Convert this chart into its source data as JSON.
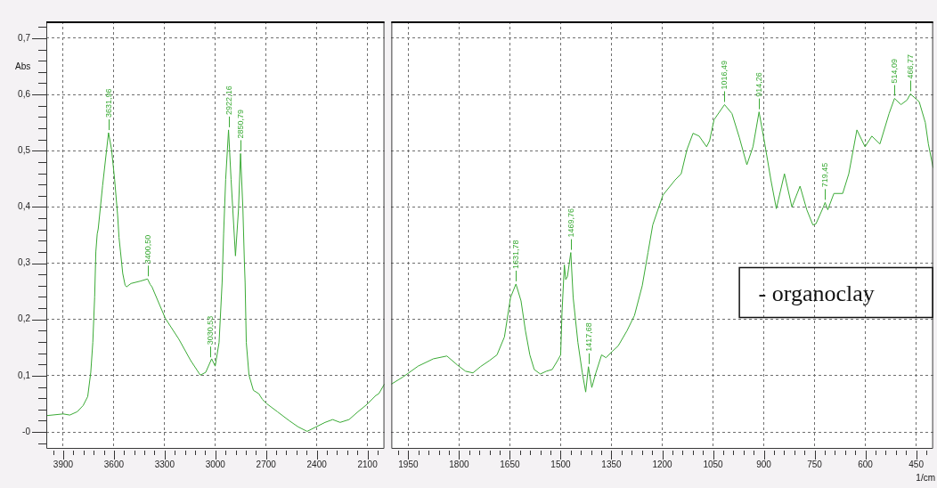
{
  "chart_data": [
    {
      "type": "line",
      "ylabel": "Abs",
      "color": "#3aaa35",
      "x": [
        4000,
        3900,
        3861,
        3817,
        3782,
        3755,
        3737,
        3725,
        3714,
        3707,
        3699,
        3693,
        3667,
        3632,
        3614,
        3596,
        3578,
        3570,
        3561,
        3548,
        3534,
        3525,
        3499,
        3446,
        3401,
        3385,
        3375,
        3296,
        3216,
        3146,
        3089,
        3057,
        3022,
        3001,
        2978,
        2960,
        2951,
        2939,
        2922,
        2907,
        2881,
        2863,
        2851,
        2837,
        2828,
        2824,
        2817,
        2801,
        2775,
        2743,
        2722,
        2695,
        2633,
        2563,
        2510,
        2457,
        2404,
        2351,
        2306,
        2262,
        2209,
        2156,
        2103,
        2050,
        2033,
        2000
      ],
      "values": [
        0.029,
        0.032,
        0.03,
        0.036,
        0.047,
        0.063,
        0.106,
        0.159,
        0.24,
        0.32,
        0.352,
        0.361,
        0.438,
        0.532,
        0.502,
        0.449,
        0.385,
        0.346,
        0.32,
        0.282,
        0.261,
        0.258,
        0.264,
        0.268,
        0.272,
        0.262,
        0.258,
        0.202,
        0.165,
        0.127,
        0.101,
        0.106,
        0.13,
        0.117,
        0.159,
        0.266,
        0.353,
        0.449,
        0.537,
        0.449,
        0.313,
        0.396,
        0.495,
        0.396,
        0.3,
        0.266,
        0.159,
        0.101,
        0.074,
        0.068,
        0.058,
        0.05,
        0.036,
        0.02,
        0.009,
        0.001,
        0.009,
        0.017,
        0.022,
        0.017,
        0.022,
        0.036,
        0.049,
        0.065,
        0.068,
        0.085
      ],
      "xlim": [
        4000,
        2000
      ],
      "xticks": [
        {
          "value": 3960,
          "label": null
        },
        3900,
        {
          "value": 3840,
          "label": null
        },
        {
          "value": 3780,
          "label": null
        },
        {
          "value": 3720,
          "label": null
        },
        {
          "value": 3660,
          "label": null
        },
        3600,
        {
          "value": 3540,
          "label": null
        },
        {
          "value": 3480,
          "label": null
        },
        {
          "value": 3420,
          "label": null
        },
        {
          "value": 3360,
          "label": null
        },
        3300,
        {
          "value": 3240,
          "label": null
        },
        {
          "value": 3180,
          "label": null
        },
        {
          "value": 3120,
          "label": null
        },
        {
          "value": 3060,
          "label": null
        },
        3000,
        {
          "value": 2940,
          "label": null
        },
        {
          "value": 2880,
          "label": null
        },
        {
          "value": 2820,
          "label": null
        },
        {
          "value": 2760,
          "label": null
        },
        2700,
        {
          "value": 2640,
          "label": null
        },
        {
          "value": 2580,
          "label": null
        },
        {
          "value": 2520,
          "label": null
        },
        {
          "value": 2460,
          "label": null
        },
        2400,
        {
          "value": 2340,
          "label": null
        },
        {
          "value": 2280,
          "label": null
        },
        {
          "value": 2220,
          "label": null
        },
        {
          "value": 2160,
          "label": null
        },
        2100,
        {
          "value": 2040,
          "label": null
        }
      ],
      "ylim": [
        -0.03,
        0.73
      ],
      "yticks": [
        {
          "value": -0.02,
          "label": null
        },
        {
          "value": 0,
          "label": "-0"
        },
        {
          "value": 0.02,
          "label": null
        },
        {
          "value": 0.04,
          "label": null
        },
        {
          "value": 0.06,
          "label": null
        },
        {
          "value": 0.08,
          "label": null
        },
        {
          "value": 0.1,
          "label": "0,1"
        },
        {
          "value": 0.12,
          "label": null
        },
        {
          "value": 0.14,
          "label": null
        },
        {
          "value": 0.16,
          "label": null
        },
        {
          "value": 0.18,
          "label": null
        },
        {
          "value": 0.2,
          "label": "0,2"
        },
        {
          "value": 0.22,
          "label": null
        },
        {
          "value": 0.24,
          "label": null
        },
        {
          "value": 0.26,
          "label": null
        },
        {
          "value": 0.28,
          "label": null
        },
        {
          "value": 0.3,
          "label": "0,3"
        },
        {
          "value": 0.32,
          "label": null
        },
        {
          "value": 0.34,
          "label": null
        },
        {
          "value": 0.36,
          "label": null
        },
        {
          "value": 0.38,
          "label": null
        },
        {
          "value": 0.4,
          "label": "0,4"
        },
        {
          "value": 0.42,
          "label": null
        },
        {
          "value": 0.44,
          "label": null
        },
        {
          "value": 0.46,
          "label": null
        },
        {
          "value": 0.48,
          "label": null
        },
        {
          "value": 0.5,
          "label": "0,5"
        },
        {
          "value": 0.52,
          "label": null
        },
        {
          "value": 0.54,
          "label": null
        },
        {
          "value": 0.56,
          "label": null
        },
        {
          "value": 0.58,
          "label": null
        },
        {
          "value": 0.6,
          "label": "0,6"
        },
        {
          "value": 0.62,
          "label": null
        },
        {
          "value": 0.64,
          "label": null
        },
        {
          "value": 0.66,
          "label": null
        },
        {
          "value": 0.68,
          "label": null
        },
        {
          "value": 0.7,
          "label": "0,7"
        },
        {
          "value": 0.72,
          "label": null
        }
      ],
      "grid": true,
      "annotations": [
        {
          "text": "3631,96",
          "x": 3631.96,
          "y": 0.532
        },
        {
          "text": "3400,50",
          "x": 3400.5,
          "y": 0.272
        },
        {
          "text": "3030,53",
          "x": 3030.53,
          "y": 0.128
        },
        {
          "text": "2922,16",
          "x": 2922.16,
          "y": 0.537
        },
        {
          "text": "2850,79",
          "x": 2850.79,
          "y": 0.495
        }
      ]
    },
    {
      "type": "line",
      "xlabel": "1/cm",
      "color": "#3aaa35",
      "tick_labels": "x",
      "x": [
        2000,
        1965,
        1921,
        1876,
        1836,
        1805,
        1781,
        1759,
        1737,
        1710,
        1688,
        1666,
        1648,
        1632,
        1617,
        1604,
        1591,
        1578,
        1560,
        1542,
        1525,
        1509,
        1500,
        1496,
        1489,
        1485,
        1480,
        1470,
        1463,
        1449,
        1436,
        1426,
        1418,
        1408,
        1396,
        1379,
        1366,
        1348,
        1330,
        1304,
        1282,
        1259,
        1242,
        1228,
        1198,
        1162,
        1144,
        1127,
        1109,
        1091,
        1069,
        1060,
        1047,
        1016,
        994,
        972,
        950,
        932,
        914,
        897,
        879,
        863,
        839,
        817,
        793,
        773,
        755,
        746,
        724,
        719,
        711,
        693,
        667,
        649,
        625,
        601,
        581,
        557,
        530,
        514,
        495,
        477,
        467,
        441,
        423,
        414,
        400
      ],
      "values": [
        0.085,
        0.098,
        0.117,
        0.13,
        0.135,
        0.119,
        0.108,
        0.105,
        0.116,
        0.127,
        0.137,
        0.169,
        0.239,
        0.263,
        0.233,
        0.18,
        0.137,
        0.111,
        0.103,
        0.108,
        0.111,
        0.127,
        0.137,
        0.212,
        0.297,
        0.271,
        0.276,
        0.319,
        0.239,
        0.159,
        0.105,
        0.071,
        0.116,
        0.079,
        0.105,
        0.137,
        0.132,
        0.143,
        0.153,
        0.18,
        0.207,
        0.26,
        0.319,
        0.368,
        0.421,
        0.448,
        0.459,
        0.502,
        0.531,
        0.526,
        0.507,
        0.518,
        0.555,
        0.582,
        0.566,
        0.523,
        0.475,
        0.507,
        0.569,
        0.512,
        0.448,
        0.397,
        0.459,
        0.4,
        0.437,
        0.395,
        0.368,
        0.37,
        0.4,
        0.408,
        0.395,
        0.424,
        0.424,
        0.459,
        0.537,
        0.507,
        0.526,
        0.512,
        0.566,
        0.593,
        0.582,
        0.59,
        0.601,
        0.587,
        0.55,
        0.512,
        0.47
      ],
      "xlim": [
        2000,
        400
      ],
      "xticks": [
        {
          "value": 1980,
          "label": null
        },
        1950,
        {
          "value": 1920,
          "label": null
        },
        {
          "value": 1890,
          "label": null
        },
        {
          "value": 1860,
          "label": null
        },
        {
          "value": 1830,
          "label": null
        },
        1800,
        {
          "value": 1770,
          "label": null
        },
        {
          "value": 1740,
          "label": null
        },
        {
          "value": 1710,
          "label": null
        },
        {
          "value": 1680,
          "label": null
        },
        1650,
        {
          "value": 1620,
          "label": null
        },
        {
          "value": 1590,
          "label": null
        },
        {
          "value": 1560,
          "label": null
        },
        {
          "value": 1530,
          "label": null
        },
        1500,
        {
          "value": 1470,
          "label": null
        },
        {
          "value": 1440,
          "label": null
        },
        {
          "value": 1410,
          "label": null
        },
        {
          "value": 1380,
          "label": null
        },
        1350,
        {
          "value": 1320,
          "label": null
        },
        {
          "value": 1290,
          "label": null
        },
        {
          "value": 1260,
          "label": null
        },
        {
          "value": 1230,
          "label": null
        },
        1200,
        {
          "value": 1170,
          "label": null
        },
        {
          "value": 1140,
          "label": null
        },
        {
          "value": 1110,
          "label": null
        },
        {
          "value": 1080,
          "label": null
        },
        1050,
        {
          "value": 1020,
          "label": null
        },
        {
          "value": 990,
          "label": null
        },
        {
          "value": 960,
          "label": null
        },
        {
          "value": 930,
          "label": null
        },
        900,
        {
          "value": 870,
          "label": null
        },
        {
          "value": 840,
          "label": null
        },
        {
          "value": 810,
          "label": null
        },
        {
          "value": 780,
          "label": null
        },
        750,
        {
          "value": 720,
          "label": null
        },
        {
          "value": 690,
          "label": null
        },
        {
          "value": 660,
          "label": null
        },
        {
          "value": 630,
          "label": null
        },
        600,
        {
          "value": 570,
          "label": null
        },
        {
          "value": 540,
          "label": null
        },
        {
          "value": 510,
          "label": null
        },
        {
          "value": 480,
          "label": null
        },
        450,
        {
          "value": 420,
          "label": null
        }
      ],
      "ylim": [
        -0.03,
        0.73
      ],
      "yticks": [
        0,
        0.1,
        0.2,
        0.3,
        0.4,
        0.5,
        0.6,
        0.7
      ],
      "grid": true,
      "annotations": [
        {
          "text": "1631,78",
          "x": 1631.78,
          "y": 0.263
        },
        {
          "text": "1469,76",
          "x": 1469.76,
          "y": 0.319
        },
        {
          "text": "1417,68",
          "x": 1417.68,
          "y": 0.116
        },
        {
          "text": "1016,49",
          "x": 1016.49,
          "y": 0.582
        },
        {
          "text": "914,26",
          "x": 914.26,
          "y": 0.569
        },
        {
          "text": "719,45",
          "x": 719.45,
          "y": 0.408
        },
        {
          "text": "514,09",
          "x": 514.09,
          "y": 0.593
        },
        {
          "text": "466,77",
          "x": 466.77,
          "y": 0.601
        },
        "- organoclay"
      ]
    }
  ]
}
